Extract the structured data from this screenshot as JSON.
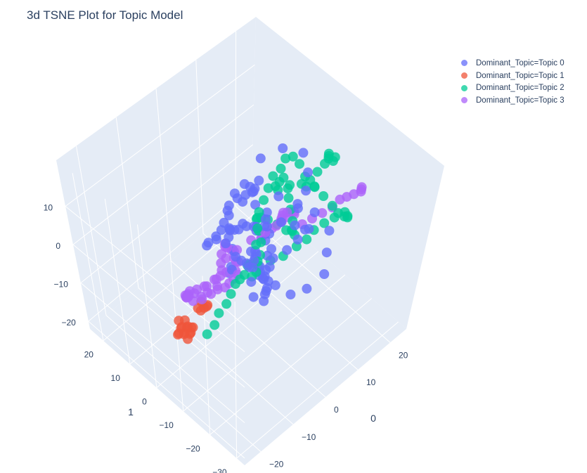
{
  "chart_data": {
    "type": "scatter",
    "title": "3d TSNE Plot for Topic Model",
    "legend_position": "top-right",
    "grid": true,
    "colors": {
      "background": "#e5ecf6",
      "grid": "#ffffff",
      "text": "#2a3f5f"
    },
    "axes": {
      "x": {
        "title": "0",
        "ticks": [
          "−20",
          "−10",
          "0",
          "10",
          "20"
        ],
        "range": [
          -25,
          25
        ]
      },
      "y": {
        "title": "1",
        "ticks": [
          "−30",
          "−20",
          "−10",
          "0",
          "10",
          "20"
        ],
        "range": [
          -33,
          25
        ]
      },
      "z": {
        "title": "",
        "ticks": [
          "−20",
          "−10",
          "0",
          "10"
        ],
        "range": [
          -22,
          22
        ]
      }
    },
    "series": [
      {
        "name": "Dominant_Topic=Topic 0",
        "color": "#636efa",
        "points": [
          [
            6,
            -12,
            12
          ],
          [
            8,
            -12,
            14
          ],
          [
            10,
            -10,
            16
          ],
          [
            12,
            -6,
            17
          ],
          [
            10,
            -2,
            17
          ],
          [
            6,
            0,
            16
          ],
          [
            4,
            -2,
            13
          ],
          [
            6,
            -6,
            10
          ],
          [
            8,
            -10,
            8
          ],
          [
            11,
            -12,
            6
          ],
          [
            12,
            -16,
            3
          ],
          [
            10,
            -18,
            0
          ],
          [
            8,
            -20,
            -3
          ],
          [
            5,
            -18,
            -6
          ],
          [
            3,
            -15,
            -8
          ],
          [
            1,
            -12,
            -6
          ],
          [
            -1,
            -9,
            -3
          ],
          [
            0,
            -6,
            0
          ],
          [
            2,
            -3,
            3
          ],
          [
            4,
            -1,
            6
          ],
          [
            5,
            2,
            8
          ],
          [
            6,
            5,
            6
          ],
          [
            5,
            7,
            3
          ],
          [
            3,
            7,
            0
          ],
          [
            2,
            5,
            -3
          ],
          [
            1,
            3,
            -6
          ],
          [
            -1,
            1,
            -8
          ],
          [
            -3,
            -1,
            -7
          ],
          [
            -4,
            -3,
            -4
          ],
          [
            -3,
            -5,
            -1
          ],
          [
            -2,
            -7,
            2
          ],
          [
            -3,
            -10,
            4
          ],
          [
            -5,
            -12,
            6
          ],
          [
            -7,
            -14,
            8
          ],
          [
            -9,
            -16,
            9
          ],
          [
            -11,
            -18,
            8
          ],
          [
            -12,
            -20,
            6
          ],
          [
            -10,
            -21,
            4
          ],
          [
            -8,
            -19,
            3
          ],
          [
            -6,
            -17,
            1
          ],
          [
            -4,
            -15,
            -1
          ],
          [
            -2,
            -13,
            -2
          ],
          [
            0,
            -11,
            -1
          ],
          [
            2,
            -9,
            1
          ],
          [
            3,
            -7,
            3
          ],
          [
            1,
            -5,
            5
          ],
          [
            -1,
            -3,
            6
          ],
          [
            -3,
            -1,
            5
          ],
          [
            -5,
            1,
            3
          ],
          [
            -6,
            3,
            0
          ],
          [
            -4,
            5,
            -2
          ],
          [
            -1,
            6,
            -4
          ],
          [
            2,
            8,
            -5
          ],
          [
            5,
            9,
            -4
          ],
          [
            8,
            8,
            -2
          ],
          [
            9,
            6,
            1
          ],
          [
            8,
            4,
            4
          ],
          [
            6,
            2,
            6
          ],
          [
            3,
            1,
            8
          ],
          [
            0,
            0,
            10
          ],
          [
            -3,
            -1,
            11
          ],
          [
            -6,
            -3,
            10
          ],
          [
            -8,
            -6,
            8
          ],
          [
            -7,
            -8,
            5
          ],
          [
            -5,
            -10,
            2
          ],
          [
            -3,
            -11,
            -1
          ],
          [
            -1,
            -10,
            -4
          ],
          [
            1,
            -8,
            -7
          ],
          [
            3,
            -6,
            -9
          ],
          [
            5,
            -4,
            -10
          ],
          [
            7,
            -2,
            -9
          ],
          [
            8,
            0,
            -7
          ],
          [
            7,
            2,
            -5
          ],
          [
            5,
            3,
            -3
          ],
          [
            2,
            2,
            -1
          ],
          [
            0,
            1,
            1
          ],
          [
            -2,
            0,
            3
          ],
          [
            -4,
            -2,
            4
          ],
          [
            -5,
            -5,
            3
          ],
          [
            -4,
            -8,
            1
          ],
          [
            -2,
            -10,
            0
          ],
          [
            0,
            -12,
            2
          ],
          [
            2,
            -14,
            4
          ],
          [
            4,
            -15,
            6
          ],
          [
            6,
            -16,
            8
          ],
          [
            4,
            -17,
            10
          ],
          [
            2,
            -16,
            12
          ],
          [
            0,
            -14,
            13
          ],
          [
            -2,
            -12,
            12
          ],
          [
            -1,
            -10,
            10
          ],
          [
            1,
            -8,
            9
          ],
          [
            3,
            -6,
            8
          ]
        ]
      },
      {
        "name": "Dominant_Topic=Topic 1",
        "color": "#ef553b",
        "points": [
          [
            -12,
            4,
            -18
          ],
          [
            -13,
            4,
            -19
          ],
          [
            -12,
            5,
            -20
          ],
          [
            -11,
            5,
            -19
          ],
          [
            -13,
            5,
            -18
          ],
          [
            -12,
            6,
            -19
          ],
          [
            -11,
            4,
            -20
          ],
          [
            -12,
            3,
            -19
          ],
          [
            -13,
            6,
            -20
          ],
          [
            -12,
            4,
            -21
          ],
          [
            -11,
            6,
            -18
          ],
          [
            -10,
            5,
            -20
          ],
          [
            -14,
            5,
            -19
          ],
          [
            -12,
            7,
            -18
          ],
          [
            -11,
            3,
            -18
          ],
          [
            -10,
            1,
            -13
          ],
          [
            -9,
            1,
            -13
          ],
          [
            -10,
            2,
            -13
          ],
          [
            -9,
            2,
            -12
          ],
          [
            -8,
            1,
            -13
          ],
          [
            -9,
            0,
            -12
          ]
        ]
      },
      {
        "name": "Dominant_Topic=Topic 2",
        "color": "#00cc96",
        "points": [
          [
            -26,
            -22,
            8
          ],
          [
            -24,
            -22,
            9
          ],
          [
            -22,
            -21,
            10
          ],
          [
            -20,
            -21,
            11
          ],
          [
            -18,
            -20,
            11.5
          ],
          [
            -16,
            -19,
            12
          ],
          [
            -14,
            -18,
            11
          ],
          [
            -12,
            -17,
            10
          ],
          [
            -10,
            -17,
            8
          ],
          [
            -8,
            -16,
            7
          ],
          [
            -6,
            -14,
            7
          ],
          [
            -4,
            -11,
            8
          ],
          [
            -2,
            -9,
            9.5
          ],
          [
            0,
            -7,
            11
          ],
          [
            2,
            -6,
            12
          ],
          [
            4,
            -5,
            13
          ],
          [
            6,
            -4,
            14
          ],
          [
            8,
            -4,
            14.5
          ],
          [
            10,
            -3,
            15
          ],
          [
            12,
            -3,
            14
          ],
          [
            13,
            -4,
            12
          ],
          [
            13,
            -6,
            10
          ],
          [
            14,
            -8,
            8
          ],
          [
            15,
            -10,
            6
          ],
          [
            16,
            -12,
            4
          ],
          [
            17,
            -13,
            2
          ],
          [
            18,
            -14,
            1
          ],
          [
            19,
            -14,
            0
          ],
          [
            20,
            -13,
            -1
          ],
          [
            21,
            -11,
            -2
          ],
          [
            20,
            -9,
            -4
          ],
          [
            19,
            -7,
            -6
          ],
          [
            17,
            -6,
            -7
          ],
          [
            15,
            -6,
            -8
          ],
          [
            13,
            -5,
            -9
          ],
          [
            10,
            -4,
            -10
          ],
          [
            8,
            -2,
            -11
          ],
          [
            6,
            0,
            -12
          ],
          [
            4,
            1,
            -11
          ],
          [
            3,
            0,
            -10
          ],
          [
            3,
            -2,
            -8
          ],
          [
            4,
            -3,
            -6
          ],
          [
            5,
            -2,
            -4
          ],
          [
            6,
            0,
            -3
          ],
          [
            7,
            2,
            -2
          ],
          [
            8,
            3,
            -3
          ],
          [
            10,
            4,
            -5
          ],
          [
            12,
            4,
            -7
          ],
          [
            14,
            3,
            -9
          ],
          [
            15,
            1,
            -10
          ],
          [
            15,
            -1,
            -9
          ],
          [
            14,
            -3,
            -8
          ],
          [
            13,
            -3,
            -6
          ],
          [
            14,
            -2,
            -5
          ],
          [
            15,
            0,
            -4
          ],
          [
            16,
            2,
            -3
          ],
          [
            17,
            3,
            -1
          ],
          [
            16,
            4,
            1
          ],
          [
            14,
            3,
            2
          ],
          [
            12,
            2,
            3
          ],
          [
            11,
            0,
            4
          ],
          [
            12,
            -2,
            5
          ],
          [
            14,
            -4,
            6
          ],
          [
            16,
            -6,
            5
          ],
          [
            23,
            -2,
            6
          ],
          [
            24,
            -1,
            4
          ],
          [
            25,
            0,
            2
          ],
          [
            25,
            1,
            0
          ],
          [
            24,
            2,
            -2
          ],
          [
            23,
            3,
            -4
          ],
          [
            22,
            3,
            -5
          ],
          [
            24,
            -3,
            5
          ],
          [
            24.5,
            -2,
            3
          ]
        ]
      },
      {
        "name": "Dominant_Topic=Topic 3",
        "color": "#ab63fa",
        "points": [
          [
            -16,
            -3,
            -2
          ],
          [
            -15,
            -1,
            -4
          ],
          [
            -14,
            1,
            -6
          ],
          [
            -13,
            2,
            -8
          ],
          [
            -12,
            1,
            -9
          ],
          [
            -11,
            -1,
            -8
          ],
          [
            -10,
            -3,
            -6
          ],
          [
            -9,
            -4,
            -4
          ],
          [
            -8,
            -4,
            -2
          ],
          [
            -7,
            -3,
            0
          ],
          [
            -6,
            -2,
            1
          ],
          [
            -5,
            -2,
            3
          ],
          [
            -6,
            -4,
            4
          ],
          [
            -8,
            -6,
            4
          ],
          [
            -10,
            -7,
            3
          ],
          [
            -12,
            -7,
            2
          ],
          [
            -14,
            -6,
            1
          ],
          [
            -16,
            -5,
            0
          ],
          [
            -17,
            -4,
            -1
          ],
          [
            -16,
            -2,
            -3
          ],
          [
            -14,
            0,
            -5
          ],
          [
            -12,
            2,
            -7
          ],
          [
            -10,
            2,
            -8
          ],
          [
            -8,
            1,
            -8
          ],
          [
            -6,
            0,
            -7
          ],
          [
            -4,
            -1,
            -6
          ],
          [
            -3,
            -3,
            -5
          ],
          [
            -4,
            -5,
            -4
          ],
          [
            -6,
            -6,
            -3
          ],
          [
            -8,
            -7,
            -2
          ],
          [
            -10,
            -8,
            -1
          ],
          [
            -12,
            -8,
            0
          ],
          [
            -14,
            -7,
            0
          ],
          [
            -15,
            -6,
            -1
          ],
          [
            -5,
            -6,
            4
          ],
          [
            -2,
            -7,
            5
          ],
          [
            1,
            -8,
            5.5
          ],
          [
            4,
            -8,
            5
          ],
          [
            6,
            -7,
            4
          ],
          [
            8,
            -5,
            2
          ],
          [
            10,
            -3,
            0
          ],
          [
            12,
            -1,
            -2
          ],
          [
            14,
            0,
            -4
          ],
          [
            16,
            1,
            -6
          ],
          [
            18,
            2,
            -8
          ],
          [
            19,
            3,
            -10
          ],
          [
            19,
            5,
            -12
          ],
          [
            18,
            6,
            -13
          ],
          [
            16,
            7,
            -14
          ],
          [
            14,
            7,
            -14
          ],
          [
            12,
            6,
            -13
          ],
          [
            11,
            5,
            -12
          ],
          [
            17,
            -2,
            -8
          ],
          [
            18,
            -4,
            -6
          ],
          [
            19,
            -6,
            -4
          ],
          [
            20,
            -8,
            -2
          ],
          [
            21,
            -9,
            0
          ],
          [
            21,
            -11,
            2
          ],
          [
            21,
            -13,
            4
          ],
          [
            21,
            -15,
            6
          ],
          [
            20,
            -16,
            8
          ],
          [
            19,
            -17,
            10
          ],
          [
            -3,
            -4,
            -2
          ],
          [
            -2,
            -2,
            -4
          ],
          [
            -1,
            0,
            -5
          ],
          [
            0,
            2,
            -5
          ],
          [
            -1,
            3,
            -4
          ]
        ]
      }
    ]
  }
}
